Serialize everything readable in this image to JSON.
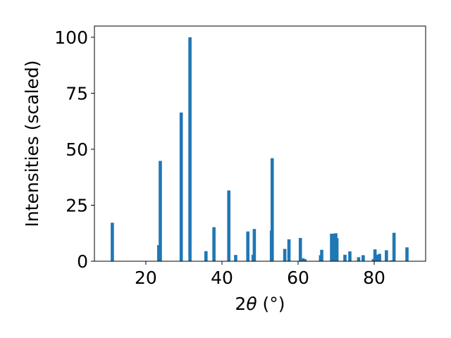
{
  "chart_data": {
    "type": "bar",
    "title": "",
    "xlabel_prefix": "2",
    "xlabel_symbol": "θ",
    "xlabel_suffix": " (°)",
    "ylabel": "Intensities (scaled)",
    "xlim": [
      6.5,
      93.5
    ],
    "ylim": [
      0,
      105
    ],
    "x_ticks": [
      20,
      40,
      60,
      80
    ],
    "y_ticks": [
      0,
      25,
      50,
      75,
      100
    ],
    "bar_color": "#1f77b4",
    "grid": false,
    "legend": "none",
    "series": [
      {
        "x": [
          11.2,
          23.4,
          23.8,
          29.3,
          31.6,
          35.8,
          37.9,
          41.8,
          43.6,
          46.8,
          48.2,
          48.5,
          53.0,
          53.2,
          56.5,
          57.6,
          60.6,
          61.3,
          61.8,
          65.9,
          66.2,
          68.8,
          69.4,
          69.9,
          70.2,
          72.3,
          73.6,
          75.9,
          77.1,
          79.8,
          80.2,
          81.0,
          81.4,
          83.2,
          84.5,
          85.2,
          88.6
        ],
        "values": [
          17.2,
          7.2,
          44.8,
          66.4,
          100.0,
          4.5,
          15.2,
          31.6,
          2.8,
          13.3,
          2.9,
          14.4,
          13.7,
          46.0,
          5.5,
          9.8,
          10.4,
          1.3,
          0.9,
          2.7,
          5.1,
          12.3,
          12.3,
          12.5,
          10.3,
          2.9,
          4.4,
          1.8,
          2.7,
          1.0,
          5.3,
          2.9,
          3.3,
          4.9,
          0.4,
          12.7,
          6.2
        ]
      }
    ]
  }
}
